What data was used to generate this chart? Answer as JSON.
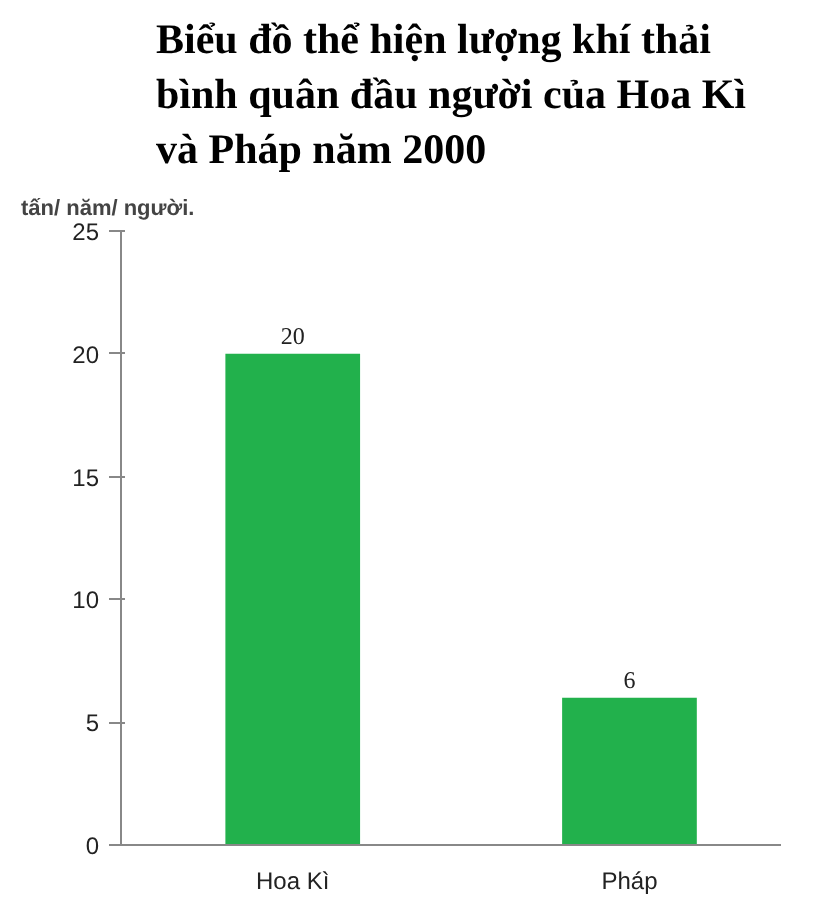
{
  "chart_data": {
    "type": "bar",
    "title": "Biểu đồ thể hiện lượng khí thải\nbình quân đầu người của Hoa Kì\nvà Pháp năm 2000",
    "ylabel": "tấn/ năm/ người.",
    "categories": [
      "Hoa Kì",
      "Pháp"
    ],
    "values": [
      20,
      6
    ],
    "color": "#22b14c",
    "ylim": [
      0,
      25
    ],
    "yticks": [
      0,
      5,
      10,
      15,
      20,
      25
    ],
    "grid": false,
    "data_labels": true
  }
}
